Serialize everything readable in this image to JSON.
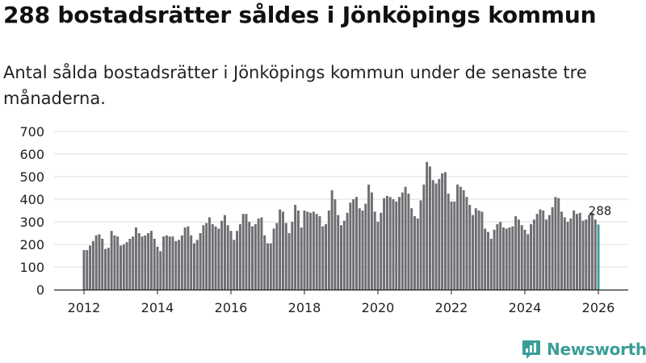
{
  "header": {
    "title": "288 bostadsrätter såldes i Jönköpings kommun",
    "subtitle": "Antal sålda bostadsrätter i Jönköpings kommun under de senaste tre månaderna."
  },
  "brand": {
    "name": "Newsworthy",
    "color": "#3a9e98"
  },
  "colors": {
    "bar": "#6e6d72",
    "highlight": "#3a9e98",
    "grid": "#dddddd",
    "axis": "#222222"
  },
  "chart_data": {
    "type": "bar",
    "title": "288 bostadsrätter såldes i Jönköpings kommun",
    "xlabel": "",
    "ylabel": "",
    "ylim": [
      0,
      700
    ],
    "yticks": [
      0,
      100,
      200,
      300,
      400,
      500,
      600,
      700
    ],
    "xticks": [
      "2012",
      "2014",
      "2016",
      "2018",
      "2020",
      "2022",
      "2024",
      "2026"
    ],
    "period": "monthly, rolling three-month total",
    "x_start": "2012-01",
    "x_end": "2026-01",
    "highlight_label": "288",
    "values": [
      175,
      175,
      195,
      215,
      240,
      245,
      225,
      180,
      185,
      260,
      240,
      235,
      195,
      200,
      210,
      225,
      235,
      275,
      250,
      235,
      240,
      250,
      260,
      225,
      190,
      170,
      235,
      240,
      235,
      235,
      215,
      220,
      240,
      275,
      280,
      240,
      205,
      220,
      250,
      285,
      295,
      320,
      290,
      280,
      270,
      305,
      330,
      285,
      260,
      220,
      260,
      290,
      335,
      335,
      300,
      280,
      290,
      315,
      320,
      240,
      205,
      205,
      270,
      295,
      355,
      345,
      295,
      250,
      300,
      375,
      350,
      275,
      350,
      345,
      340,
      345,
      335,
      325,
      280,
      290,
      350,
      440,
      400,
      330,
      285,
      305,
      340,
      385,
      400,
      410,
      360,
      350,
      380,
      465,
      430,
      345,
      300,
      340,
      405,
      415,
      410,
      400,
      390,
      410,
      430,
      455,
      425,
      360,
      325,
      315,
      395,
      465,
      565,
      545,
      485,
      470,
      490,
      515,
      520,
      425,
      390,
      390,
      465,
      455,
      440,
      410,
      375,
      330,
      360,
      350,
      345,
      270,
      255,
      225,
      265,
      290,
      300,
      275,
      270,
      275,
      280,
      325,
      310,
      285,
      265,
      245,
      290,
      310,
      335,
      355,
      350,
      310,
      330,
      365,
      410,
      405,
      345,
      320,
      300,
      315,
      350,
      335,
      340,
      305,
      310,
      330,
      340,
      310,
      288
    ]
  }
}
